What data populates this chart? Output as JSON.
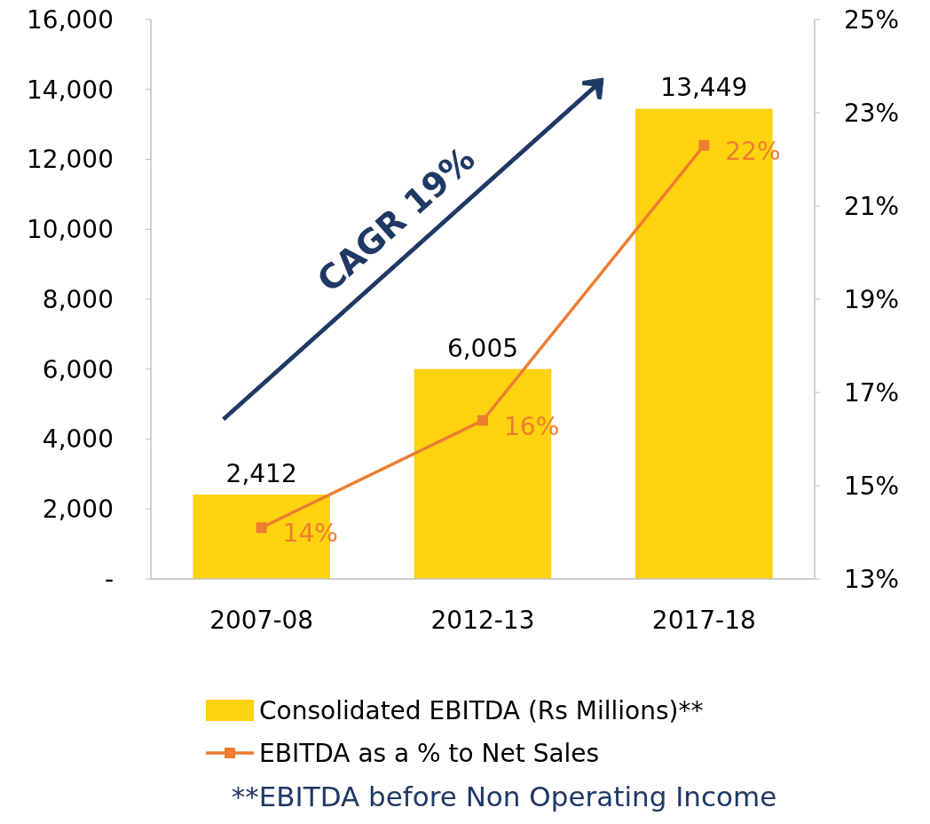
{
  "chart_data": {
    "type": "bar",
    "categories": [
      "2007-08",
      "2012-13",
      "2017-18"
    ],
    "series": [
      {
        "name": "Consolidated EBITDA (Rs Millions)**",
        "color": "#fdd20e",
        "values": [
          2412,
          6005,
          13449
        ],
        "value_labels": [
          "2,412",
          "6,005",
          "13,449"
        ]
      },
      {
        "name": "EBITDA as a % to Net Sales",
        "type": "line",
        "axis": "y2",
        "color": "#ed7d31",
        "values": [
          14.1,
          16.4,
          22.3
        ],
        "value_labels": [
          "14%",
          "16%",
          "22%"
        ],
        "marker": "square"
      }
    ],
    "ylim": [
      0,
      16000
    ],
    "yticks": [
      {
        "value": 0,
        "label": "-"
      },
      {
        "value": 2000,
        "label": "2,000"
      },
      {
        "value": 4000,
        "label": "4,000"
      },
      {
        "value": 6000,
        "label": "6,000"
      },
      {
        "value": 8000,
        "label": "8,000"
      },
      {
        "value": 10000,
        "label": "10,000"
      },
      {
        "value": 12000,
        "label": "12,000"
      },
      {
        "value": 14000,
        "label": "14,000"
      },
      {
        "value": 16000,
        "label": "16,000"
      }
    ],
    "y2lim": [
      13,
      25
    ],
    "y2ticks": [
      {
        "value": 13,
        "label": "13%"
      },
      {
        "value": 15,
        "label": "15%"
      },
      {
        "value": 17,
        "label": "17%"
      },
      {
        "value": 19,
        "label": "19%"
      },
      {
        "value": 21,
        "label": "21%"
      },
      {
        "value": 23,
        "label": "23%"
      },
      {
        "value": 25,
        "label": "25%"
      }
    ],
    "grid": false,
    "legend": "bottom",
    "annotations": [
      "CAGR 19%",
      "**EBITDA before Non Operating Income"
    ]
  }
}
